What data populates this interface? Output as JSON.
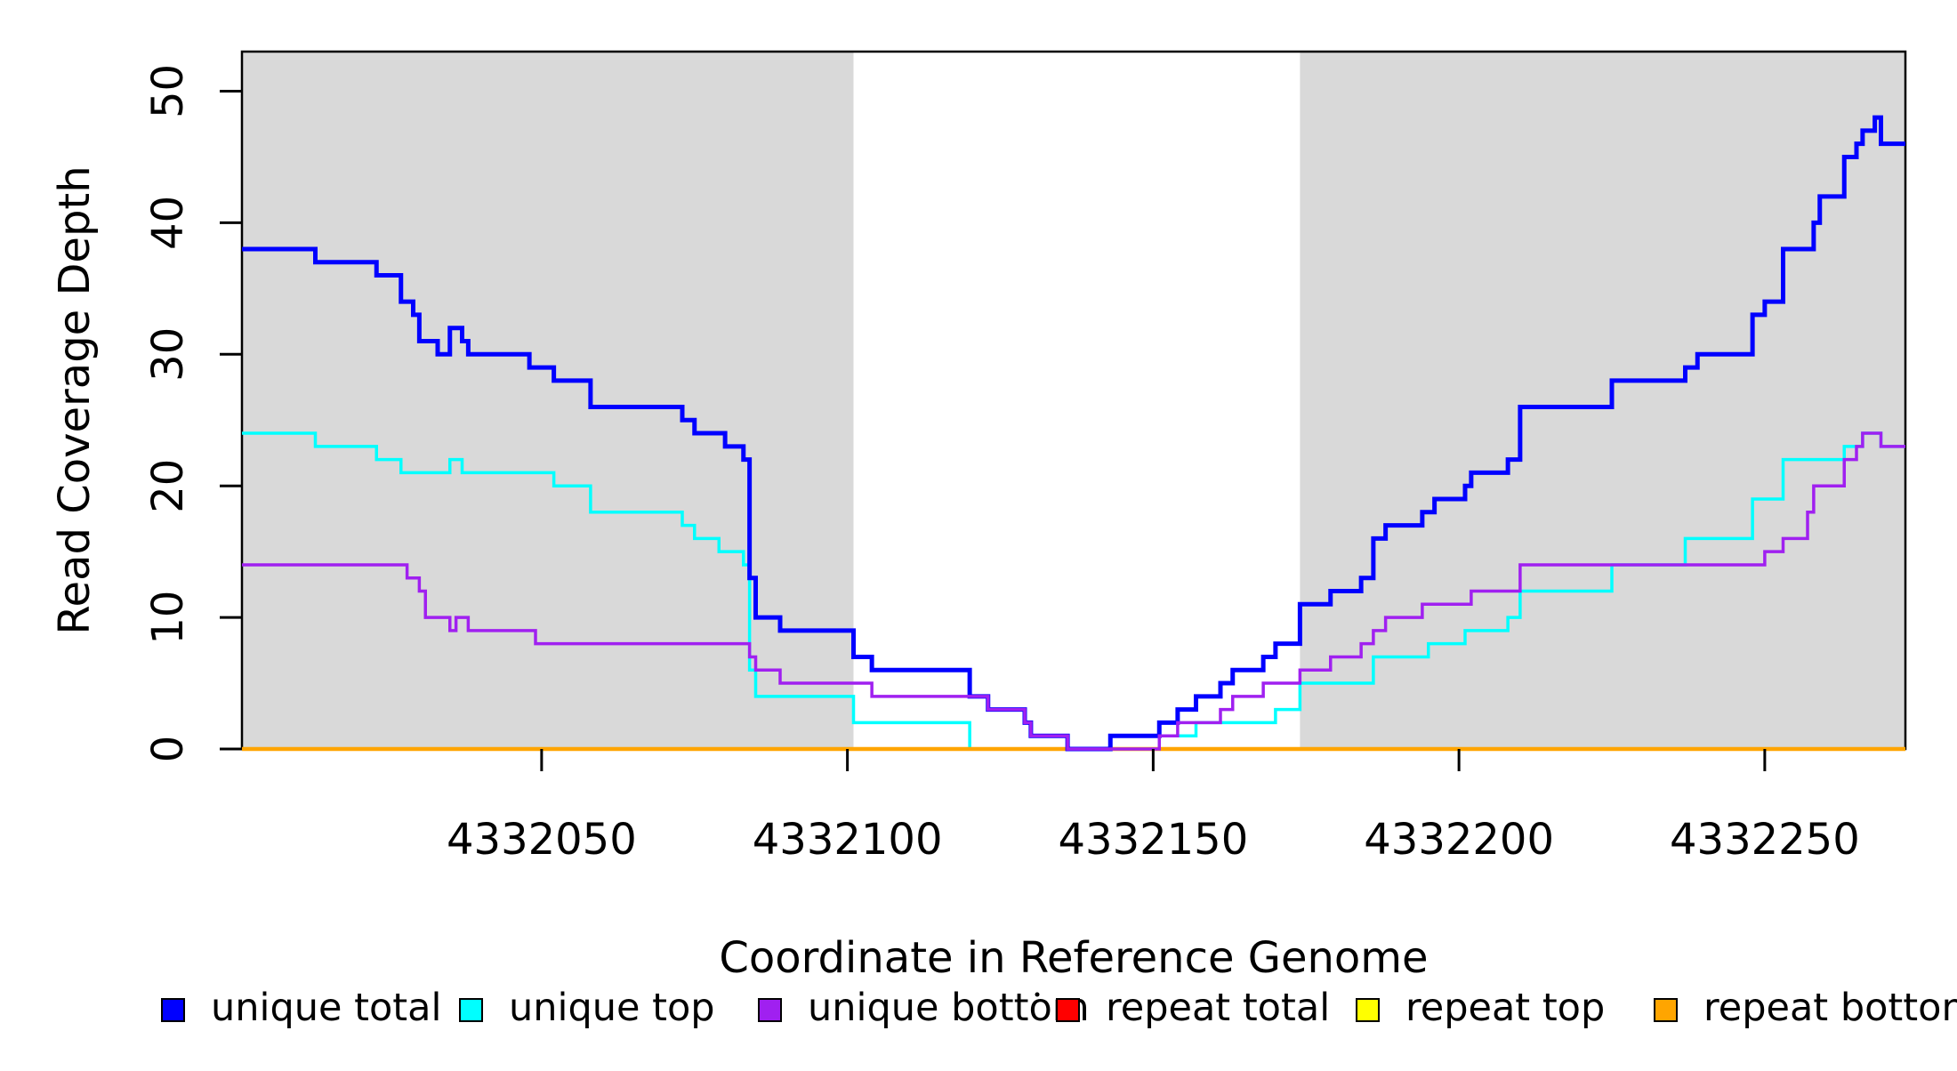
{
  "chart_data": {
    "type": "line",
    "subtype": "step-coverage",
    "title": "",
    "xlabel": "Coordinate in Reference Genome",
    "ylabel": "Read Coverage Depth",
    "xlim": [
      4332001,
      4332273
    ],
    "ylim": [
      0,
      53
    ],
    "x_ticks": [
      4332050,
      4332100,
      4332150,
      4332200,
      4332250
    ],
    "y_ticks": [
      0,
      10,
      20,
      30,
      40,
      50
    ],
    "grid": false,
    "legend_position": "bottom-horizontal",
    "background_color": "#ffffff",
    "highlight_regions": [
      {
        "name": "left-gray-block",
        "from": 4332001,
        "to": 4332101,
        "color": "#D9D9D9"
      },
      {
        "name": "right-gray-block",
        "from": 4332174,
        "to": 4332273,
        "color": "#D9D9D9"
      }
    ],
    "draw_order": [
      "repeat total",
      "repeat top",
      "unique top",
      "repeat bottom",
      "unique total",
      "unique bottom"
    ],
    "series": [
      {
        "name": "unique total",
        "color": "#0000FF",
        "width": 5,
        "steps": [
          [
            4332001,
            38
          ],
          [
            4332013,
            37
          ],
          [
            4332023,
            36
          ],
          [
            4332027,
            34
          ],
          [
            4332029,
            33
          ],
          [
            4332030,
            31
          ],
          [
            4332033,
            30
          ],
          [
            4332035,
            32
          ],
          [
            4332037,
            31
          ],
          [
            4332038,
            30
          ],
          [
            4332048,
            29
          ],
          [
            4332052,
            28
          ],
          [
            4332058,
            26
          ],
          [
            4332073,
            25
          ],
          [
            4332075,
            24
          ],
          [
            4332080,
            23
          ],
          [
            4332083,
            22
          ],
          [
            4332084,
            13
          ],
          [
            4332085,
            10
          ],
          [
            4332089,
            9
          ],
          [
            4332101,
            7
          ],
          [
            4332104,
            6
          ],
          [
            4332120,
            4
          ],
          [
            4332123,
            3
          ],
          [
            4332129,
            2
          ],
          [
            4332130,
            1
          ],
          [
            4332136,
            0
          ],
          [
            4332143,
            1
          ],
          [
            4332151,
            2
          ],
          [
            4332154,
            3
          ],
          [
            4332157,
            4
          ],
          [
            4332161,
            5
          ],
          [
            4332163,
            6
          ],
          [
            4332168,
            7
          ],
          [
            4332170,
            8
          ],
          [
            4332174,
            11
          ],
          [
            4332179,
            12
          ],
          [
            4332184,
            13
          ],
          [
            4332186,
            16
          ],
          [
            4332188,
            17
          ],
          [
            4332194,
            18
          ],
          [
            4332196,
            19
          ],
          [
            4332201,
            20
          ],
          [
            4332202,
            21
          ],
          [
            4332208,
            22
          ],
          [
            4332210,
            26
          ],
          [
            4332225,
            28
          ],
          [
            4332237,
            29
          ],
          [
            4332239,
            30
          ],
          [
            4332248,
            33
          ],
          [
            4332250,
            34
          ],
          [
            4332253,
            38
          ],
          [
            4332258,
            40
          ],
          [
            4332259,
            42
          ],
          [
            4332263,
            45
          ],
          [
            4332265,
            46
          ],
          [
            4332266,
            47
          ],
          [
            4332268,
            48
          ],
          [
            4332269,
            46
          ]
        ]
      },
      {
        "name": "unique top",
        "color": "#00FFFF",
        "width": 3.5,
        "steps": [
          [
            4332001,
            24
          ],
          [
            4332013,
            23
          ],
          [
            4332023,
            22
          ],
          [
            4332027,
            21
          ],
          [
            4332035,
            22
          ],
          [
            4332037,
            21
          ],
          [
            4332052,
            20
          ],
          [
            4332058,
            18
          ],
          [
            4332073,
            17
          ],
          [
            4332075,
            16
          ],
          [
            4332079,
            15
          ],
          [
            4332083,
            14
          ],
          [
            4332084,
            6
          ],
          [
            4332085,
            4
          ],
          [
            4332101,
            2
          ],
          [
            4332120,
            0
          ],
          [
            4332143,
            1
          ],
          [
            4332157,
            2
          ],
          [
            4332170,
            3
          ],
          [
            4332174,
            5
          ],
          [
            4332186,
            7
          ],
          [
            4332195,
            8
          ],
          [
            4332201,
            9
          ],
          [
            4332208,
            10
          ],
          [
            4332210,
            12
          ],
          [
            4332225,
            14
          ],
          [
            4332237,
            16
          ],
          [
            4332248,
            19
          ],
          [
            4332253,
            22
          ],
          [
            4332263,
            23
          ],
          [
            4332266,
            24
          ],
          [
            4332269,
            23
          ]
        ]
      },
      {
        "name": "unique bottom",
        "color": "#A020F0",
        "width": 3.5,
        "steps": [
          [
            4332001,
            14
          ],
          [
            4332028,
            13
          ],
          [
            4332030,
            12
          ],
          [
            4332031,
            10
          ],
          [
            4332035,
            9
          ],
          [
            4332036,
            10
          ],
          [
            4332038,
            9
          ],
          [
            4332049,
            8
          ],
          [
            4332084,
            7
          ],
          [
            4332085,
            6
          ],
          [
            4332089,
            5
          ],
          [
            4332104,
            4
          ],
          [
            4332123,
            3
          ],
          [
            4332129,
            2
          ],
          [
            4332130,
            1
          ],
          [
            4332136,
            0
          ],
          [
            4332151,
            1
          ],
          [
            4332154,
            2
          ],
          [
            4332161,
            3
          ],
          [
            4332163,
            4
          ],
          [
            4332168,
            5
          ],
          [
            4332174,
            6
          ],
          [
            4332179,
            7
          ],
          [
            4332184,
            8
          ],
          [
            4332186,
            9
          ],
          [
            4332188,
            10
          ],
          [
            4332194,
            11
          ],
          [
            4332202,
            12
          ],
          [
            4332210,
            14
          ],
          [
            4332250,
            15
          ],
          [
            4332253,
            16
          ],
          [
            4332257,
            18
          ],
          [
            4332258,
            20
          ],
          [
            4332263,
            22
          ],
          [
            4332265,
            23
          ],
          [
            4332266,
            24
          ],
          [
            4332269,
            23
          ]
        ]
      },
      {
        "name": "repeat total",
        "color": "#FF0000",
        "width": 3.5,
        "steps": [
          [
            4332001,
            0
          ]
        ]
      },
      {
        "name": "repeat top",
        "color": "#FFFF00",
        "width": 3.5,
        "steps": [
          [
            4332001,
            0
          ]
        ]
      },
      {
        "name": "repeat bottom",
        "color": "#FFA500",
        "width": 4.5,
        "steps": [
          [
            4332001,
            0
          ]
        ]
      }
    ]
  },
  "legend": {
    "items": [
      {
        "label": "unique total",
        "color": "#0000FF"
      },
      {
        "label": "unique top",
        "color": "#00FFFF"
      },
      {
        "label": "unique bottom",
        "color": "#A020F0"
      },
      {
        "label": "repeat total",
        "color": "#FF0000"
      },
      {
        "label": "repeat top",
        "color": "#FFFF00"
      },
      {
        "label": "repeat bottom",
        "color": "#FFA500"
      }
    ]
  }
}
